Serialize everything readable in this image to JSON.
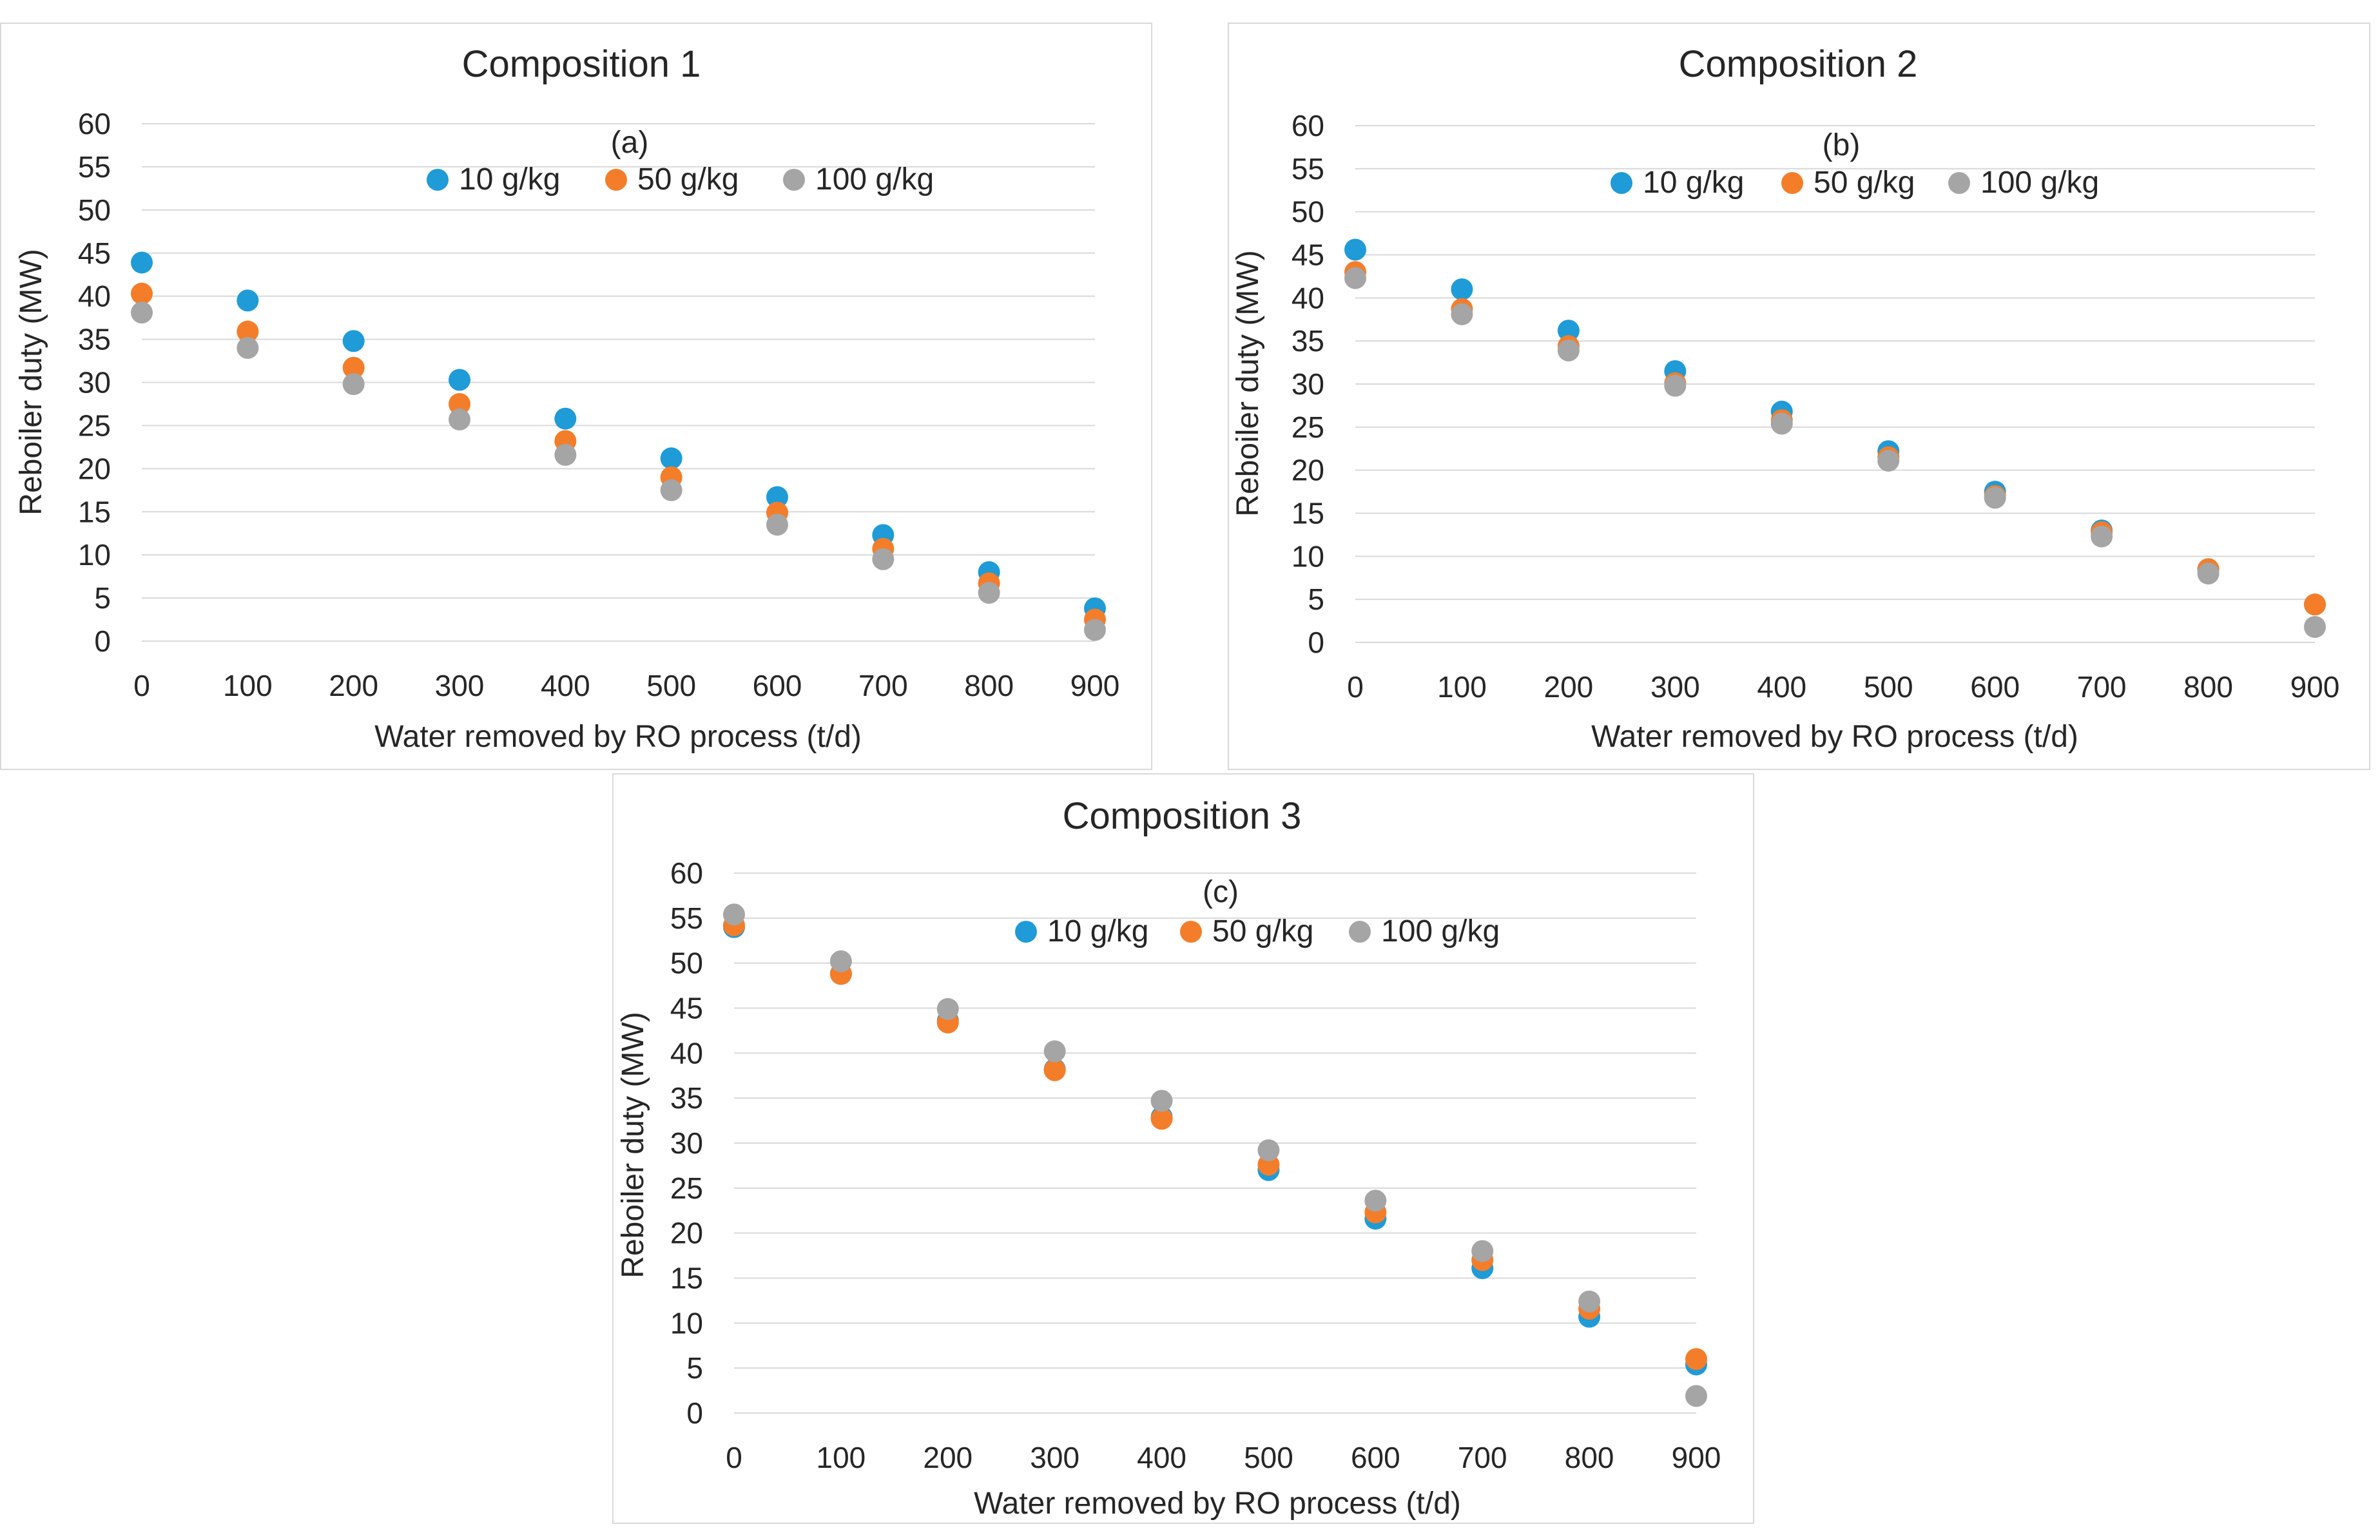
{
  "series_colors": [
    "#1f9bd7",
    "#f47d2a",
    "#a5a5a5"
  ],
  "chart_data": [
    {
      "type": "scatter",
      "title": "Composition 1",
      "annotation": "(a)",
      "xlabel": "Water removed by RO process (t/d)",
      "ylabel": "Reboiler duty (MW)",
      "xlim": [
        0,
        900
      ],
      "ylim": [
        0,
        60
      ],
      "x": [
        0,
        100,
        200,
        300,
        400,
        500,
        600,
        700,
        800,
        900
      ],
      "x_ticks": [
        "0",
        "100",
        "200",
        "300",
        "400",
        "500",
        "600",
        "700",
        "800",
        "900"
      ],
      "y_ticks": [
        "0",
        "5",
        "10",
        "15",
        "20",
        "25",
        "30",
        "35",
        "40",
        "45",
        "50",
        "55",
        "60"
      ],
      "legend_position": "top-center",
      "grid": true,
      "series": [
        {
          "name": "10 g/kg",
          "values": [
            43.9,
            39.5,
            34.8,
            30.3,
            25.8,
            21.2,
            16.7,
            12.3,
            8.0,
            3.8
          ]
        },
        {
          "name": "50 g/kg",
          "values": [
            40.3,
            35.9,
            31.7,
            27.5,
            23.2,
            19.0,
            14.9,
            10.7,
            6.7,
            2.5
          ]
        },
        {
          "name": "100 g/kg",
          "values": [
            38.1,
            34.0,
            29.8,
            25.7,
            21.6,
            17.5,
            13.5,
            9.5,
            5.6,
            1.3
          ]
        }
      ]
    },
    {
      "type": "scatter",
      "title": "Composition 2",
      "annotation": "(b)",
      "xlabel": "Water removed by RO process (t/d)",
      "ylabel": "Reboiler duty (MW)",
      "xlim": [
        0,
        900
      ],
      "ylim": [
        0,
        60
      ],
      "x": [
        0,
        100,
        200,
        300,
        400,
        500,
        600,
        700,
        800,
        900
      ],
      "x_ticks": [
        "0",
        "100",
        "200",
        "300",
        "400",
        "500",
        "600",
        "700",
        "800",
        "900"
      ],
      "y_ticks": [
        "0",
        "5",
        "10",
        "15",
        "20",
        "25",
        "30",
        "35",
        "40",
        "45",
        "50",
        "55",
        "60"
      ],
      "legend_position": "top-center",
      "grid": true,
      "series": [
        {
          "name": "10 g/kg",
          "values": [
            45.6,
            41.0,
            36.2,
            31.5,
            26.8,
            22.2,
            17.5,
            13.0,
            8.5,
            4.4
          ]
        },
        {
          "name": "50 g/kg",
          "values": [
            43.0,
            38.7,
            34.4,
            30.1,
            25.8,
            21.5,
            17.0,
            12.8,
            8.5,
            4.4
          ]
        },
        {
          "name": "100 g/kg",
          "values": [
            42.3,
            38.1,
            33.9,
            29.8,
            25.4,
            21.1,
            16.8,
            12.3,
            8.0,
            1.8
          ]
        }
      ]
    },
    {
      "type": "scatter",
      "title": "Composition 3",
      "annotation": "(c)",
      "xlabel": "Water removed by RO process (t/d)",
      "ylabel": "Reboiler duty (MW)",
      "xlim": [
        0,
        900
      ],
      "ylim": [
        0,
        60
      ],
      "x": [
        0,
        100,
        200,
        300,
        400,
        500,
        600,
        700,
        800,
        900
      ],
      "x_ticks": [
        "0",
        "100",
        "200",
        "300",
        "400",
        "500",
        "600",
        "700",
        "800",
        "900"
      ],
      "y_ticks": [
        "0",
        "5",
        "10",
        "15",
        "20",
        "25",
        "30",
        "35",
        "40",
        "45",
        "50",
        "55",
        "60"
      ],
      "legend_position": "top-center",
      "grid": true,
      "series": [
        {
          "name": "10 g/kg",
          "values": [
            54.0,
            48.8,
            43.6,
            38.2,
            32.9,
            27.0,
            21.6,
            16.1,
            10.7,
            5.4
          ]
        },
        {
          "name": "50 g/kg",
          "values": [
            54.2,
            48.8,
            43.4,
            38.1,
            32.7,
            27.6,
            22.3,
            17.0,
            11.6,
            6.0
          ]
        },
        {
          "name": "100 g/kg",
          "values": [
            55.4,
            50.2,
            44.9,
            40.2,
            34.7,
            29.2,
            23.6,
            18.0,
            12.4,
            1.9
          ]
        }
      ]
    }
  ]
}
